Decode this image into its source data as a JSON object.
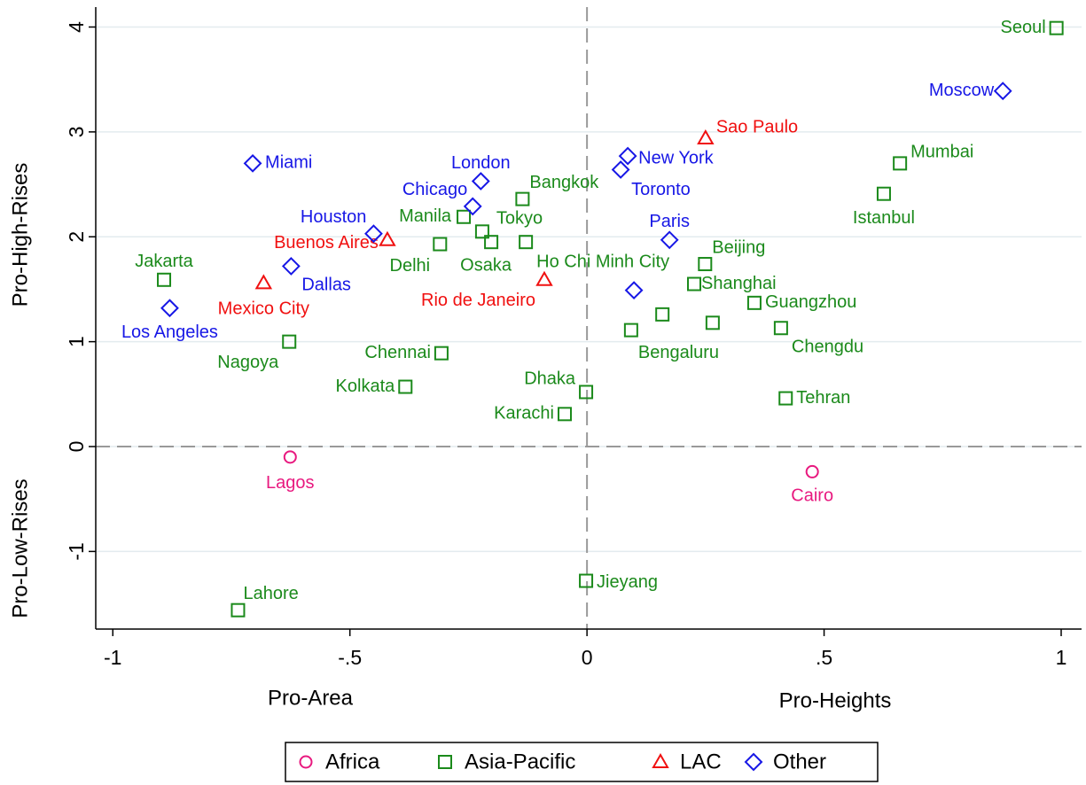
{
  "chart_data": {
    "type": "scatter",
    "x_titles": [
      "Pro-Area",
      "Pro-Heights"
    ],
    "y_titles": [
      "Pro-High-Rises",
      "Pro-Low-Rises"
    ],
    "xlim": [
      -1.036,
      1.043
    ],
    "ylim": [
      -1.74,
      4.19
    ],
    "xticks": [
      -1,
      {
        "value": -0.5,
        "label": "-.5"
      },
      0,
      {
        "value": 0.5,
        "label": ".5"
      },
      1
    ],
    "yticks": [
      -1,
      0,
      1,
      2,
      3,
      4
    ],
    "xline": 0,
    "yline": 0,
    "grid": true,
    "legend": "bottom",
    "series": [
      {
        "name": "Africa",
        "color": "#e8197f",
        "marker": "circle",
        "x": [
          -0.626,
          0.475
        ],
        "y": [
          -0.1,
          -0.24
        ],
        "labels": [
          "Lagos",
          "Cairo"
        ]
      },
      {
        "name": "Asia-Pacific",
        "color": "#1b8a1b",
        "marker": "square",
        "x": [
          0.99,
          0.66,
          0.626,
          0.249,
          0.226,
          0.353,
          0.409,
          -0.26,
          -0.221,
          -0.31,
          -0.202,
          -0.129,
          -0.136,
          -0.307,
          -0.383,
          -0.002,
          -0.047,
          -0.628,
          -0.892,
          -0.736,
          -0.002,
          0.419,
          0.093,
          0.159,
          0.265
        ],
        "y": [
          3.99,
          2.7,
          2.41,
          1.74,
          1.55,
          1.37,
          1.13,
          2.19,
          2.05,
          1.93,
          1.95,
          1.95,
          2.36,
          0.89,
          0.57,
          0.52,
          0.31,
          1.0,
          1.59,
          -1.56,
          -1.28,
          0.46,
          1.11,
          1.26,
          1.18
        ],
        "labels": [
          "Seoul",
          "Mumbai",
          "Istanbul",
          "Beijing",
          "Shanghai",
          "Guangzhou",
          "Chengdu",
          "Manila",
          "Tokyo",
          "Delhi",
          "Osaka",
          "Ho Chi Minh City",
          "Bangkok",
          "Chennai",
          "Kolkata",
          "Dhaka",
          "Karachi",
          "Nagoya",
          "Jakarta",
          "Lahore",
          "Jieyang",
          "Tehran",
          "Bengaluru",
          null,
          null
        ]
      },
      {
        "name": "LAC",
        "color": "#f01010",
        "marker": "triangle",
        "x": [
          0.25,
          -0.421,
          -0.682,
          -0.09
        ],
        "y": [
          2.94,
          1.97,
          1.56,
          1.59
        ],
        "labels": [
          "Sao Paulo",
          "Buenos Aires",
          "Mexico City",
          "Rio de Janeiro"
        ]
      },
      {
        "name": "Other",
        "color": "#1717e6",
        "marker": "diamond",
        "x": [
          0.877,
          -0.705,
          -0.224,
          -0.241,
          -0.45,
          -0.624,
          -0.88,
          0.086,
          0.071,
          0.174,
          0.099
        ],
        "y": [
          3.39,
          2.7,
          2.53,
          2.29,
          2.03,
          1.72,
          1.32,
          2.77,
          2.64,
          1.97,
          1.49
        ],
        "labels": [
          "Moscow",
          "Miami",
          "London",
          "Chicago",
          "Houston",
          "Dallas",
          "Los Angeles",
          "New York",
          "Toronto",
          "Paris",
          null
        ]
      }
    ]
  }
}
